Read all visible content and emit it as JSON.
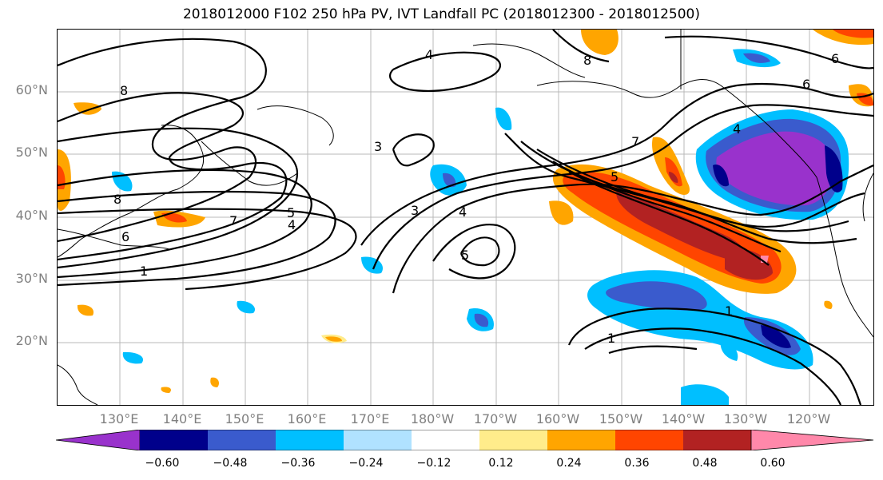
{
  "title": "2018012000 F102 250 hPa PV, IVT Landfall PC (2018012300 - 2018012500)",
  "lat_labels": [
    "60°N",
    "50°N",
    "40°N",
    "30°N",
    "20°N"
  ],
  "lon_labels": [
    "130°E",
    "140°E",
    "150°E",
    "160°E",
    "170°E",
    "180°W",
    "170°W",
    "160°W",
    "150°W",
    "140°W",
    "130°W",
    "120°W"
  ],
  "colorbar": {
    "colors": [
      "#9932cc",
      "#00008b",
      "#3a5bcd",
      "#00bfff",
      "#b0e2ff",
      "#ffffff",
      "#ffec8b",
      "#ffa500",
      "#ff4500",
      "#b22222",
      "#ff88aa"
    ],
    "tick_labels": [
      "−0.60",
      "−0.48",
      "−0.36",
      "−0.24",
      "−0.12",
      "0.12",
      "0.24",
      "0.36",
      "0.48",
      "0.60"
    ]
  },
  "contour_labels": [
    "8",
    "4",
    "8",
    "6",
    "6",
    "3",
    "7",
    "5",
    "3",
    "4",
    "5",
    "4",
    "5",
    "7",
    "8",
    "6",
    "1",
    "1",
    "1",
    "4"
  ]
}
